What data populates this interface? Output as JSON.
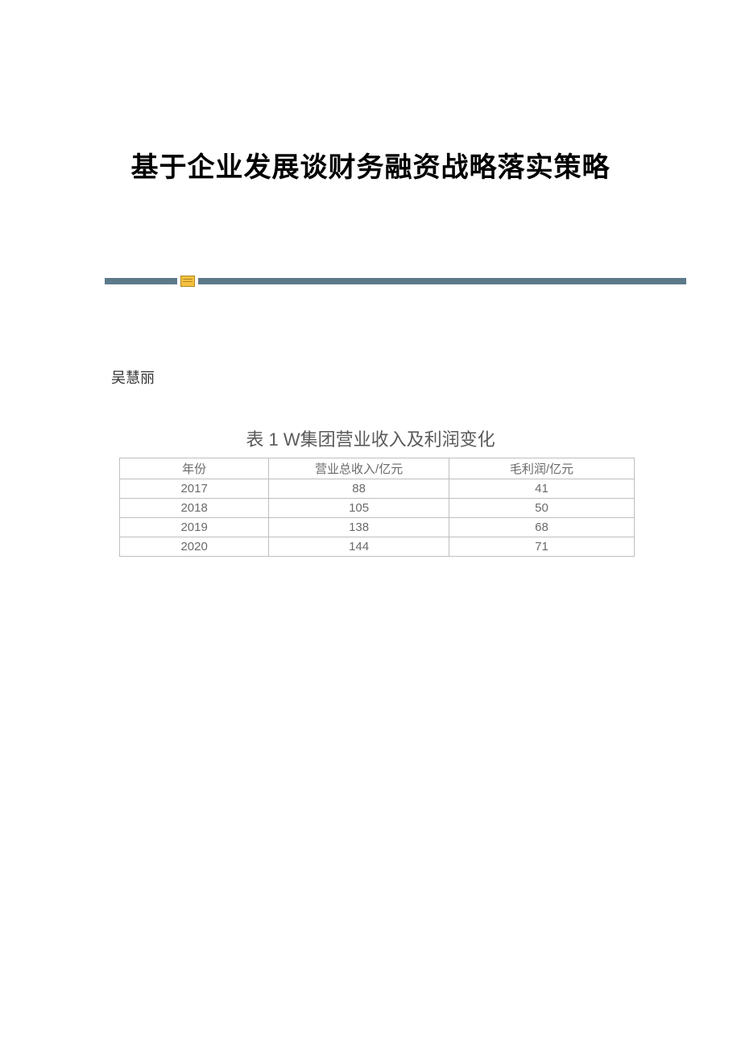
{
  "document": {
    "title": "基于企业发展谈财务融资战略落实策略",
    "author": "吴慧丽",
    "colors": {
      "title_text": "#000000",
      "body_text": "#333333",
      "table_text": "#6a6a6a",
      "table_title_text": "#5a5a5a",
      "divider_bar": "#5d7a8a",
      "divider_icon_bg": "#f5c040",
      "divider_icon_border": "#b08820",
      "table_border": "#bfbfbf",
      "background": "#ffffff"
    },
    "typography": {
      "title_fontsize": 34,
      "author_fontsize": 18,
      "table_title_fontsize": 22,
      "table_cell_fontsize": 15,
      "title_font": "SimHei",
      "body_font": "SimSun",
      "table_font": "Microsoft YaHei"
    }
  },
  "table": {
    "title": "表 1 W集团营业收入及利润变化",
    "columns": [
      "年份",
      "营业总收入/亿元",
      "毛利润/亿元"
    ],
    "column_widths_pct": [
      29,
      35,
      36
    ],
    "rows": [
      [
        "2017",
        "88",
        "41"
      ],
      [
        "2018",
        "105",
        "50"
      ],
      [
        "2019",
        "138",
        "68"
      ],
      [
        "2020",
        "144",
        "71"
      ]
    ]
  }
}
